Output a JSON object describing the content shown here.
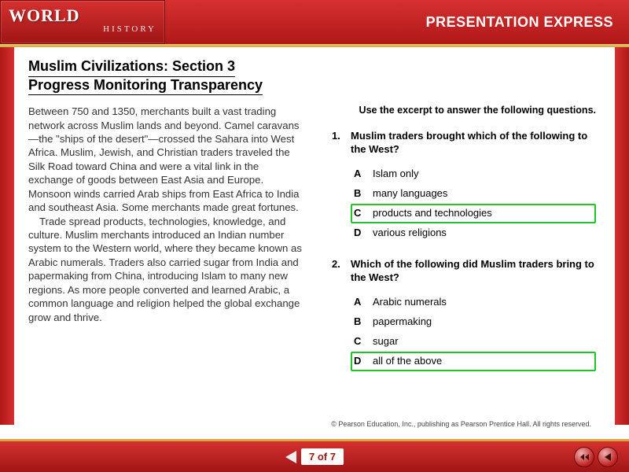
{
  "header": {
    "logo_main": "WORLD",
    "logo_sub": "HISTORY",
    "product": "PRESENTATION EXPRESS"
  },
  "title": {
    "line1": "Muslim Civilizations: Section 3",
    "line2": "Progress Monitoring Transparency"
  },
  "passage": {
    "p1": "Between 750 and 1350, merchants built a vast trading network across Muslim lands and beyond. Camel caravans—the \"ships of the desert\"—crossed the Sahara into West Africa. Muslim, Jewish, and Christian traders traveled the Silk Road toward China and were a vital link in the exchange of goods between East Asia and Europe. Monsoon winds carried Arab ships from East Africa to India and southeast Asia. Some merchants made great fortunes.",
    "p2": "Trade spread products, technologies, knowledge, and culture. Muslim merchants introduced an Indian number system to the Western world, where they became known as Arabic numerals. Traders also carried sugar from India and papermaking from China, introducing Islam to many new regions. As more people converted and learned Arabic, a common language and religion helped the global exchange grow and thrive."
  },
  "instruction": "Use the excerpt to answer the following questions.",
  "questions": [
    {
      "num": "1.",
      "stem": "Muslim traders brought which of the following to the West?",
      "choices": [
        {
          "letter": "A",
          "text": "Islam only",
          "correct": false
        },
        {
          "letter": "B",
          "text": "many languages",
          "correct": false
        },
        {
          "letter": "C",
          "text": "products and technologies",
          "correct": true
        },
        {
          "letter": "D",
          "text": "various religions",
          "correct": false
        }
      ]
    },
    {
      "num": "2.",
      "stem": "Which of the following did Muslim traders bring to the West?",
      "choices": [
        {
          "letter": "A",
          "text": "Arabic numerals",
          "correct": false
        },
        {
          "letter": "B",
          "text": "papermaking",
          "correct": false
        },
        {
          "letter": "C",
          "text": "sugar",
          "correct": false
        },
        {
          "letter": "D",
          "text": "all of the above",
          "correct": true
        }
      ]
    }
  ],
  "copyright": "© Pearson Education, Inc., publishing as Pearson Prentice Hall. All rights reserved.",
  "pager": {
    "current": 7,
    "total": 7,
    "label": "7 of 7"
  },
  "colors": {
    "header_red": "#b01818",
    "gold_stripe": "#d4a840",
    "correct_border": "#22c428"
  }
}
